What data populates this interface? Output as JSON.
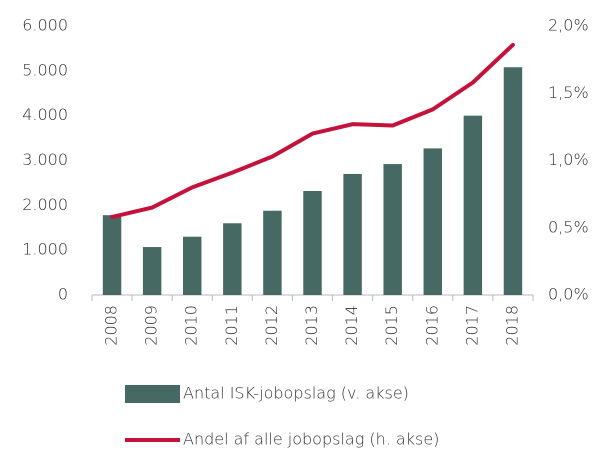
{
  "chart_data": {
    "type": "bar",
    "categories": [
      "2008",
      "2009",
      "2010",
      "2011",
      "2012",
      "2013",
      "2014",
      "2015",
      "2016",
      "2017",
      "2018"
    ],
    "series": [
      {
        "name": "Antal ISK-jobopslag (v. akse)",
        "type": "bar",
        "axis": "y",
        "color": "#476964",
        "values": [
          1780,
          1070,
          1300,
          1600,
          1880,
          2320,
          2700,
          2920,
          3270,
          4000,
          5080
        ]
      },
      {
        "name": "Andel af alle jobopslag (h. akse)",
        "type": "line",
        "axis": "y2",
        "color": "#c4123a",
        "values": [
          0.58,
          0.65,
          0.8,
          0.91,
          1.03,
          1.2,
          1.27,
          1.26,
          1.38,
          1.58,
          1.86
        ]
      }
    ],
    "ylim": [
      0,
      6000
    ],
    "yticks": [
      0,
      {
        "value": 1000,
        "label": "1.000"
      },
      {
        "value": 2000,
        "label": "2.000"
      },
      {
        "value": 3000,
        "label": "3.000"
      },
      {
        "value": 4000,
        "label": "4.000"
      },
      {
        "value": 5000,
        "label": "5.000"
      },
      {
        "value": 6000,
        "label": "6.000"
      }
    ],
    "y2lim": [
      0,
      2.0
    ],
    "y2ticks": [
      {
        "value": 0,
        "label": "0,0%"
      },
      {
        "value": 0.5,
        "label": "0,5%"
      },
      {
        "value": 1.0,
        "label": "1,0%"
      },
      {
        "value": 1.5,
        "label": "1,5%"
      },
      {
        "value": 2.0,
        "label": "2,0%"
      }
    ],
    "grid": false
  }
}
